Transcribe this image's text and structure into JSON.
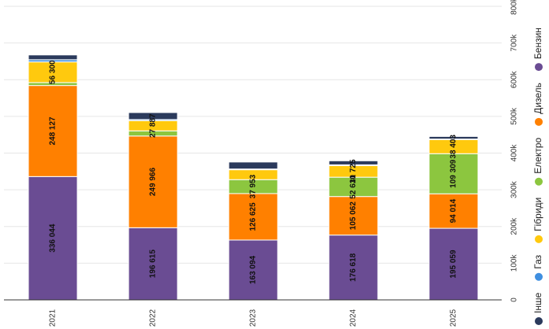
{
  "chart_data": {
    "type": "bar",
    "stacked": true,
    "orientation": "rotated-90",
    "categories": [
      "2021",
      "2022",
      "2023",
      "2024",
      "2025"
    ],
    "series": [
      {
        "name": "Бензин",
        "color": "#6a4c93",
        "values": [
          336044,
          196615,
          163094,
          176618,
          195059
        ],
        "labels": [
          "336 044",
          "196 615",
          "163 094",
          "176 618",
          "195 059"
        ]
      },
      {
        "name": "Дизель",
        "color": "#ff8000",
        "values": [
          248127,
          249966,
          126625,
          105062,
          94014
        ],
        "labels": [
          "248 127",
          "249 966",
          "126 625",
          "105 062",
          "94 014"
        ]
      },
      {
        "name": "Електро",
        "color": "#8cc63f",
        "values": [
          8000,
          14000,
          37953,
          52610,
          109309
        ],
        "labels": [
          "",
          "",
          "37 953",
          "52 610",
          "109 309"
        ]
      },
      {
        "name": "Гібриди",
        "color": "#ffc90e",
        "values": [
          56300,
          27887,
          27000,
          31725,
          38403
        ],
        "labels": [
          "56 300",
          "27 887",
          "",
          "31 725",
          "38 403"
        ]
      },
      {
        "name": "Газ",
        "color": "#3f8fe0",
        "values": [
          6000,
          3000,
          2000,
          2000,
          1500
        ],
        "labels": [
          "",
          "",
          "",
          "",
          ""
        ]
      },
      {
        "name": "Інше",
        "color": "#2b3a5c",
        "values": [
          13000,
          19000,
          19000,
          11000,
          7000
        ],
        "labels": [
          "",
          "",
          "",
          "",
          ""
        ]
      }
    ],
    "value_axis": {
      "min": 0,
      "max": 800000,
      "ticks": [
        "0",
        "100k",
        "200k",
        "300k",
        "400k",
        "500k",
        "600k",
        "700k",
        "800k"
      ]
    },
    "legend_order": [
      "Інше",
      "Газ",
      "Гібриди",
      "Електро",
      "Дизель",
      "Бензин"
    ],
    "legend_position": "right",
    "grid": true
  }
}
